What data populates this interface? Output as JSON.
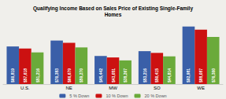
{
  "chart_data": {
    "type": "bar",
    "title": "Qualifying Income Based on Sales Price of Existing Single-Family\nHomes",
    "categories": [
      "U.S.",
      "NE",
      "MW",
      "SO",
      "WE"
    ],
    "series": [
      {
        "name": "5 % Down",
        "color": "#3a5fa8",
        "values": [
          60819,
          70383,
          45442,
          53216,
          92981
        ],
        "value_labels": [
          "$60,819",
          "$70,383",
          "$45,442",
          "$53,216",
          "$92,981"
        ]
      },
      {
        "name": "10 % Down",
        "color": "#cc1111",
        "values": [
          57618,
          66679,
          43051,
          50415,
          88087
        ],
        "value_labels": [
          "$57,618",
          "$66,679",
          "$43,051",
          "$50,415",
          "$88,087"
        ]
      },
      {
        "name": "20 % Down",
        "color": "#6aaa3a",
        "values": [
          51216,
          59270,
          38267,
          44814,
          76300
        ],
        "value_labels": [
          "$51,216",
          "$59,270",
          "$38,267",
          "$44,814",
          "$76,300"
        ]
      }
    ],
    "ylim": [
      0,
      108000
    ],
    "tick_labels": "x",
    "grid": false,
    "legend": "bottom",
    "data_labels": true
  }
}
